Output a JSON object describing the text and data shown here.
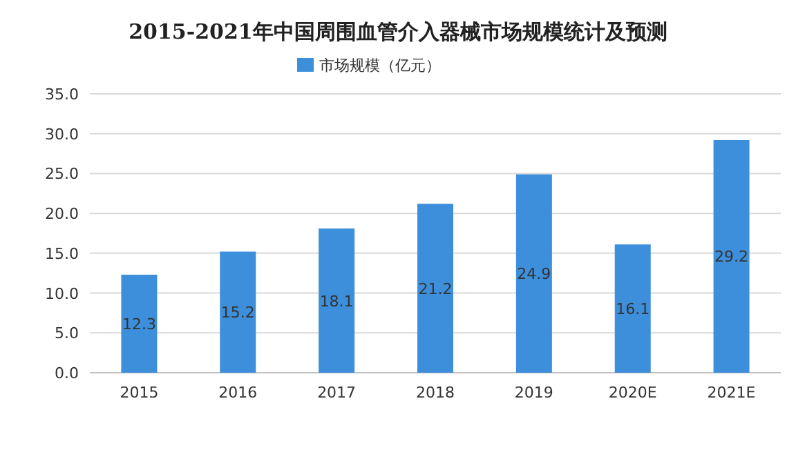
{
  "chart_data": {
    "type": "bar",
    "title": "2015-2021年中国周围血管介入器械市场规模统计及预测",
    "categories": [
      "2015",
      "2016",
      "2017",
      "2018",
      "2019",
      "2020E",
      "2021E"
    ],
    "series": [
      {
        "name": "市场规模（亿元）",
        "color": "#3d8fdb",
        "values": [
          12.3,
          15.2,
          18.1,
          21.2,
          24.9,
          16.1,
          29.2
        ]
      }
    ],
    "ylim": [
      0,
      35
    ],
    "yticks": [
      {
        "value": 0,
        "label": "0.0"
      },
      {
        "value": 5,
        "label": "5.0"
      },
      {
        "value": 10,
        "label": "10.0"
      },
      {
        "value": 15,
        "label": "15.0"
      },
      {
        "value": 20,
        "label": "20.0"
      },
      {
        "value": 25,
        "label": "25.0"
      },
      {
        "value": 30,
        "label": "30.0"
      },
      {
        "value": 35,
        "label": "35.0"
      }
    ],
    "grid": "y",
    "legend": "top",
    "data_labels": true
  }
}
